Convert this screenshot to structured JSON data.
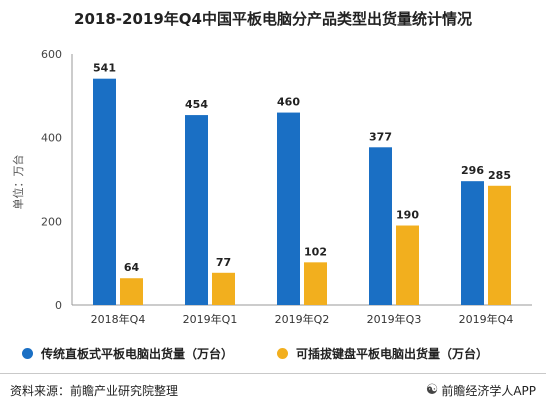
{
  "chart_data": {
    "type": "bar",
    "title": "2018-2019年Q4中国平板电脑分产品类型出货量统计情况",
    "ylabel": "单位：万台",
    "ylim": [
      0,
      600
    ],
    "yticks": [
      "0",
      "200",
      "400",
      "600"
    ],
    "categories": [
      "2018年Q4",
      "2019年Q1",
      "2019年Q2",
      "2019年Q3",
      "2019年Q4"
    ],
    "series": [
      {
        "name": "传统直板式平板电脑出货量（万台）",
        "values": [
          541,
          454,
          460,
          377,
          296
        ],
        "color": "#1a6fc4"
      },
      {
        "name": "可插拔键盘平板电脑出货量（万台）",
        "values": [
          64,
          77,
          102,
          190,
          285
        ],
        "color": "#f2af1e"
      }
    ],
    "grid": false,
    "legend": "bottom"
  },
  "footer": {
    "source": "资料来源：前瞻产业研究院整理",
    "brand": "前瞻经济学人APP",
    "brand_icon": "qianzhan-logo-icon"
  }
}
